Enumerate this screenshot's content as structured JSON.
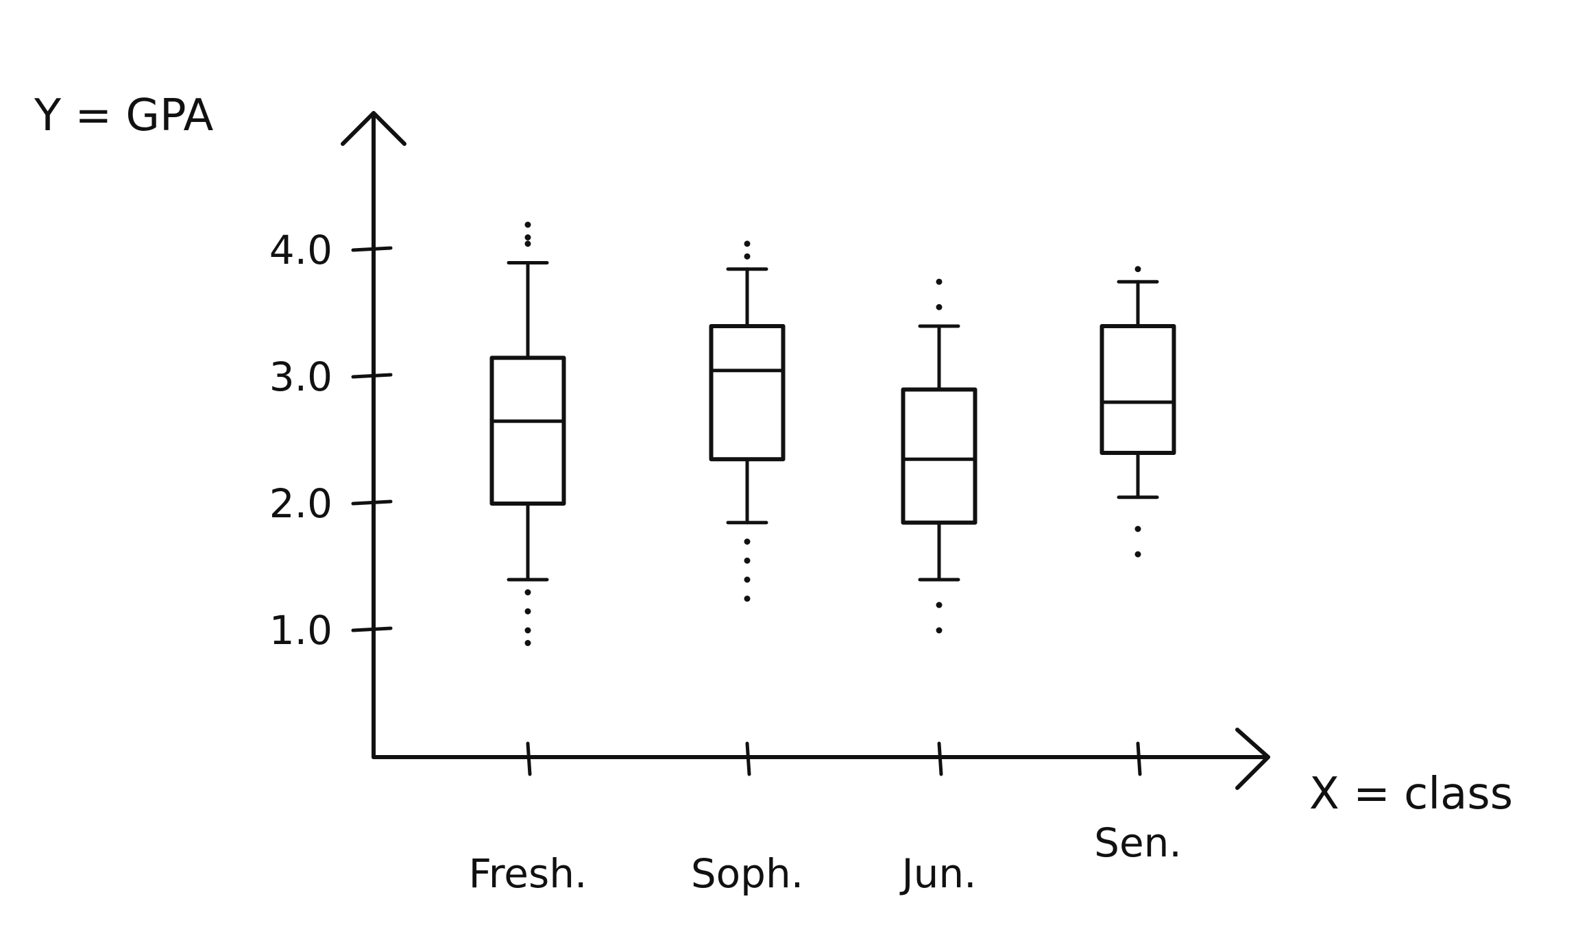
{
  "chart_data": {
    "type": "box",
    "ylabel": "Y = GPA",
    "xlabel": "X = class",
    "ylim": [
      0,
      4.5
    ],
    "yticks": [
      1.0,
      2.0,
      3.0,
      4.0
    ],
    "ytick_labels": [
      "1.0",
      "2.0",
      "3.0",
      "4.0"
    ],
    "grid": false,
    "categories": [
      "Fresh.",
      "Soph.",
      "Jun.",
      "Sen."
    ],
    "boxes": [
      {
        "category": "Fresh.",
        "whisker_low": 1.4,
        "q1": 2.0,
        "median": 2.65,
        "q3": 3.15,
        "whisker_high": 3.9,
        "outliers": [
          0.9,
          1.0,
          1.15,
          1.3,
          4.05,
          4.1,
          4.2
        ]
      },
      {
        "category": "Soph.",
        "whisker_low": 1.85,
        "q1": 2.35,
        "median": 3.05,
        "q3": 3.4,
        "whisker_high": 3.85,
        "outliers": [
          1.25,
          1.4,
          1.55,
          1.7,
          3.95,
          4.05
        ]
      },
      {
        "category": "Jun.",
        "whisker_low": 1.4,
        "q1": 1.85,
        "median": 2.35,
        "q3": 2.9,
        "whisker_high": 3.4,
        "outliers": [
          1.0,
          1.2,
          3.55,
          3.75
        ]
      },
      {
        "category": "Sen.",
        "whisker_low": 2.05,
        "q1": 2.4,
        "median": 2.8,
        "q3": 3.4,
        "whisker_high": 3.75,
        "outliers": [
          1.6,
          1.8,
          3.85
        ]
      }
    ]
  }
}
